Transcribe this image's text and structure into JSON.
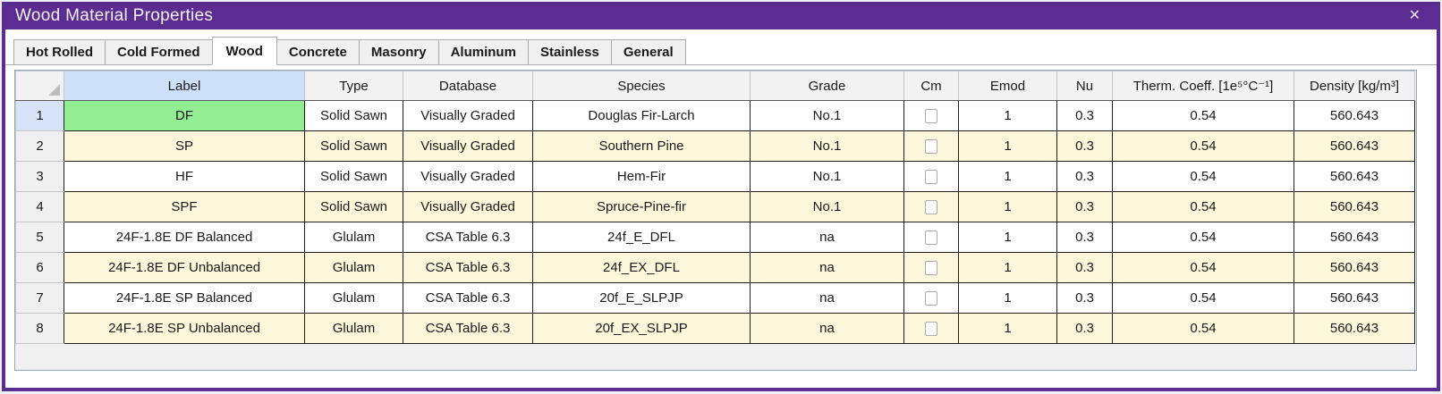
{
  "window": {
    "title": "Wood Material Properties",
    "close_glyph": "✕",
    "accent_color": "#5C2D91"
  },
  "tabs": [
    {
      "label": "Hot Rolled",
      "active": false
    },
    {
      "label": "Cold Formed",
      "active": false
    },
    {
      "label": "Wood",
      "active": true
    },
    {
      "label": "Concrete",
      "active": false
    },
    {
      "label": "Masonry",
      "active": false
    },
    {
      "label": "Aluminum",
      "active": false
    },
    {
      "label": "Stainless",
      "active": false
    },
    {
      "label": "General",
      "active": false
    }
  ],
  "table": {
    "columns": [
      "Label",
      "Type",
      "Database",
      "Species",
      "Grade",
      "Cm",
      "Emod",
      "Nu",
      "Therm. Coeff. [1e⁵°C⁻¹]",
      "Density [kg/m³]"
    ],
    "rows": [
      {
        "num": "1",
        "label": "DF",
        "type": "Solid Sawn",
        "database": "Visually Graded",
        "species": "Douglas Fir-Larch",
        "grade": "No.1",
        "cm_checked": false,
        "emod": "1",
        "nu": "0.3",
        "therm_coeff": "0.54",
        "density": "560.643",
        "selected": true
      },
      {
        "num": "2",
        "label": "SP",
        "type": "Solid Sawn",
        "database": "Visually Graded",
        "species": "Southern Pine",
        "grade": "No.1",
        "cm_checked": false,
        "emod": "1",
        "nu": "0.3",
        "therm_coeff": "0.54",
        "density": "560.643",
        "selected": false
      },
      {
        "num": "3",
        "label": "HF",
        "type": "Solid Sawn",
        "database": "Visually Graded",
        "species": "Hem-Fir",
        "grade": "No.1",
        "cm_checked": false,
        "emod": "1",
        "nu": "0.3",
        "therm_coeff": "0.54",
        "density": "560.643",
        "selected": false
      },
      {
        "num": "4",
        "label": "SPF",
        "type": "Solid Sawn",
        "database": "Visually Graded",
        "species": "Spruce-Pine-fir",
        "grade": "No.1",
        "cm_checked": false,
        "emod": "1",
        "nu": "0.3",
        "therm_coeff": "0.54",
        "density": "560.643",
        "selected": false
      },
      {
        "num": "5",
        "label": "24F-1.8E DF Balanced",
        "type": "Glulam",
        "database": "CSA Table 6.3",
        "species": "24f_E_DFL",
        "grade": "na",
        "cm_checked": false,
        "emod": "1",
        "nu": "0.3",
        "therm_coeff": "0.54",
        "density": "560.643",
        "selected": false
      },
      {
        "num": "6",
        "label": "24F-1.8E DF Unbalanced",
        "type": "Glulam",
        "database": "CSA Table 6.3",
        "species": "24f_EX_DFL",
        "grade": "na",
        "cm_checked": false,
        "emod": "1",
        "nu": "0.3",
        "therm_coeff": "0.54",
        "density": "560.643",
        "selected": false
      },
      {
        "num": "7",
        "label": "24F-1.8E SP Balanced",
        "type": "Glulam",
        "database": "CSA Table 6.3",
        "species": "20f_E_SLPJP",
        "grade": "na",
        "cm_checked": false,
        "emod": "1",
        "nu": "0.3",
        "therm_coeff": "0.54",
        "density": "560.643",
        "selected": false
      },
      {
        "num": "8",
        "label": "24F-1.8E SP Unbalanced",
        "type": "Glulam",
        "database": "CSA Table 6.3",
        "species": "20f_EX_SLPJP",
        "grade": "na",
        "cm_checked": false,
        "emod": "1",
        "nu": "0.3",
        "therm_coeff": "0.54",
        "density": "560.643",
        "selected": false
      }
    ]
  },
  "colors": {
    "titlebar_purple": "#5C2D91",
    "selected_cell_green": "#93ED93",
    "alt_row_cream": "#FCF6DB",
    "selected_header_blue": "#CDDFF8",
    "selected_row_number_blue": "#D6E3F6"
  }
}
